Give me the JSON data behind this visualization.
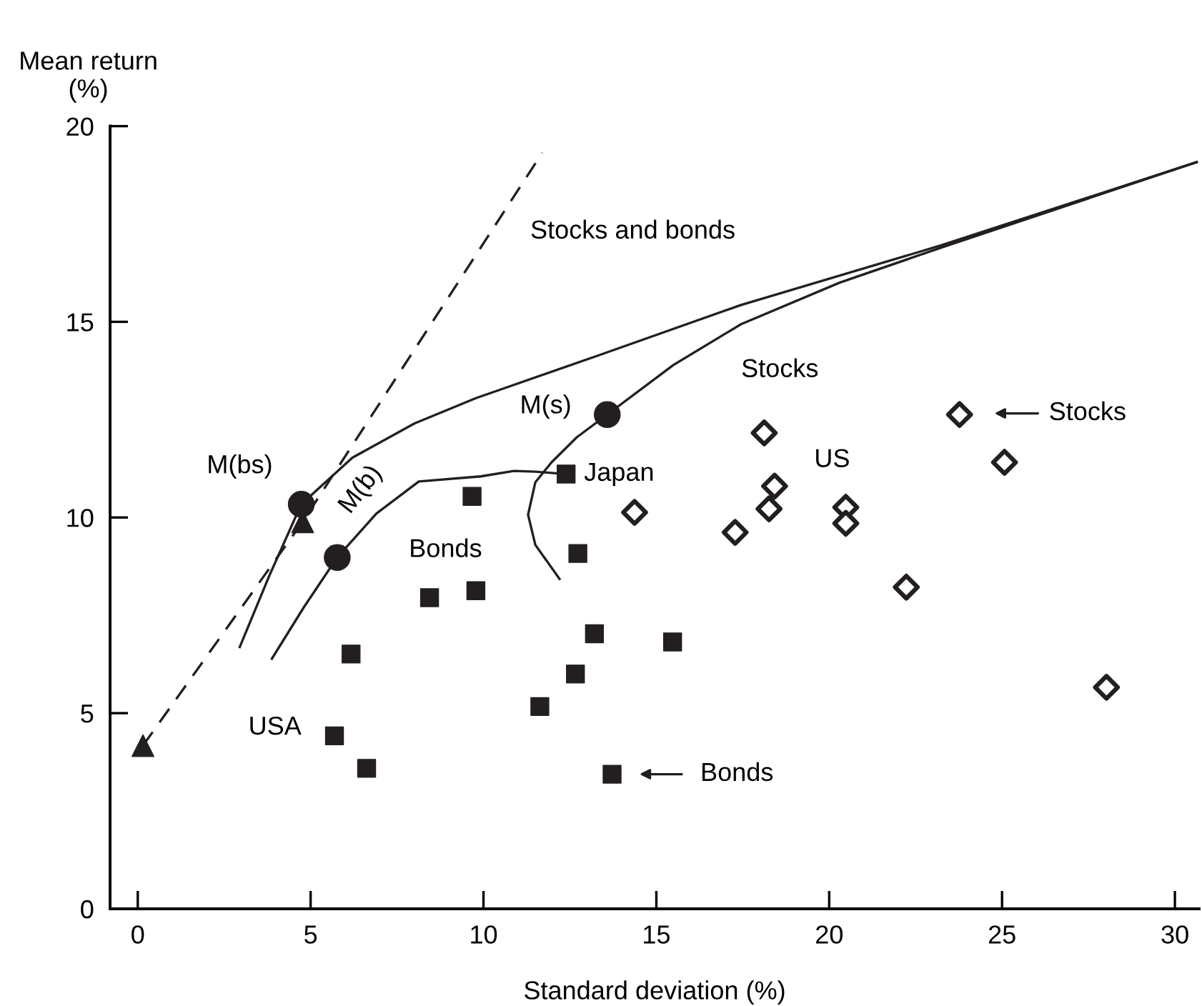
{
  "chart_data": {
    "type": "scatter",
    "xlabel": "Standard deviation (%)",
    "ylabel": "Mean return\n(%)",
    "xlim": [
      -0.8,
      30.7
    ],
    "ylim": [
      0,
      20
    ],
    "xticks": [
      0,
      5,
      10,
      15,
      20,
      25,
      30
    ],
    "yticks": [
      0,
      5,
      10,
      15,
      20
    ],
    "series": [
      {
        "type": "line",
        "line_style": "dashed",
        "marker": "none",
        "color": "#231f20",
        "x": [
          0.15,
          4.77,
          11.7
        ],
        "values": [
          4.17,
          9.89,
          19.32
        ]
      },
      {
        "type": "line",
        "line_style": "solid",
        "marker": "none",
        "color": "#231f20",
        "x": [
          2.95,
          3.8,
          4.73,
          6.21,
          8.0,
          9.78,
          13.35,
          17.45,
          23.22,
          30.63
        ],
        "values": [
          6.69,
          8.5,
          10.34,
          11.53,
          12.4,
          13.05,
          14.15,
          15.43,
          16.95,
          19.08
        ]
      },
      {
        "type": "line",
        "line_style": "solid",
        "marker": "none",
        "color": "#231f20",
        "x": [
          12.2,
          11.5,
          11.29,
          11.5,
          11.97,
          12.7,
          13.58,
          15.5,
          17.45,
          20.3,
          23.22,
          30.63
        ],
        "values": [
          8.43,
          9.3,
          10.07,
          10.9,
          11.41,
          12.05,
          12.63,
          13.9,
          14.94,
          16.0,
          16.89,
          19.08
        ]
      },
      {
        "type": "line",
        "line_style": "solid",
        "marker": "none",
        "color": "#231f20",
        "x": [
          3.88,
          4.8,
          5.77,
          6.9,
          8.13,
          9.92,
          10.88,
          11.5,
          12.39
        ],
        "values": [
          6.39,
          7.7,
          8.98,
          10.1,
          10.92,
          11.05,
          11.19,
          11.17,
          11.11
        ]
      },
      {
        "marker": "square",
        "color": "#231f20",
        "x": [
          12.73,
          8.44,
          9.78,
          6.17,
          13.21,
          15.47,
          12.66,
          11.63,
          5.69,
          6.62,
          13.72,
          9.67,
          12.39
        ],
        "values": [
          9.08,
          7.95,
          8.13,
          6.51,
          7.03,
          6.82,
          6.0,
          5.17,
          4.42,
          3.59,
          3.44,
          10.54,
          11.11
        ]
      },
      {
        "marker": "diamond",
        "color": "#231f20",
        "x": [
          14.37,
          18.12,
          18.42,
          18.26,
          17.28,
          20.48,
          20.48,
          22.23,
          23.77,
          25.07,
          28.02
        ],
        "values": [
          10.13,
          12.16,
          10.8,
          10.22,
          9.62,
          10.26,
          9.85,
          8.22,
          12.63,
          11.41,
          5.66
        ]
      },
      {
        "marker": "triangle",
        "color": "#231f20",
        "x": [
          0.15,
          4.77
        ],
        "values": [
          4.17,
          9.89
        ]
      },
      {
        "marker": "circle",
        "color": "#231f20",
        "x": [
          4.73,
          5.77,
          13.58
        ],
        "values": [
          10.34,
          8.98,
          12.63
        ]
      }
    ],
    "annotations": [
      "Stocks and bonds",
      {
        "text": "M(bs)",
        "x": 4.73,
        "y": 10.34
      },
      {
        "text": "M(b)",
        "x": 5.77,
        "y": 8.98
      },
      {
        "text": "M(s)",
        "x": 13.58,
        "y": 12.63
      },
      {
        "text": "Japan",
        "x": 12.39,
        "y": 11.11
      },
      "Bonds",
      {
        "text": "USA",
        "x": 5.69,
        "y": 4.42
      },
      "Stocks",
      "US",
      "Stocks",
      "Bonds"
    ]
  }
}
